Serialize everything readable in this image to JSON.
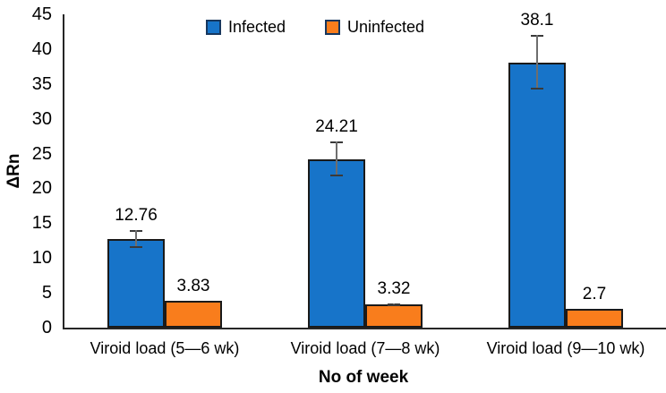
{
  "chart_data": {
    "type": "bar",
    "title": "",
    "xlabel": "No of week",
    "ylabel": "ΔRn",
    "ylim": [
      0,
      45
    ],
    "ytick_step": 5,
    "grid": false,
    "legend_position": "top-center",
    "categories": [
      "Viroid load (5—6 wk)",
      "Viroid load (7—8 wk)",
      "Viroid load (9—10 wk)"
    ],
    "series": [
      {
        "name": "Infected",
        "color": "#1774C9",
        "values": [
          12.76,
          24.21,
          38.1
        ],
        "errors": [
          1.3,
          2.5,
          3.9
        ],
        "data_labels": [
          "12.76",
          "24.21",
          "38.1"
        ]
      },
      {
        "name": "Uninfected",
        "color": "#F97D1C",
        "values": [
          3.83,
          3.32,
          2.7
        ],
        "errors": [
          0,
          0.2,
          0
        ],
        "data_labels": [
          "3.83",
          "3.32",
          "2.7"
        ]
      }
    ]
  },
  "colors": {
    "bar_border": "#1a1a1a",
    "axis_line": "#262626",
    "error_line": "#6e6e6e",
    "error_cap": "#3a3a3a",
    "text": "#000000",
    "background": "#ffffff"
  }
}
